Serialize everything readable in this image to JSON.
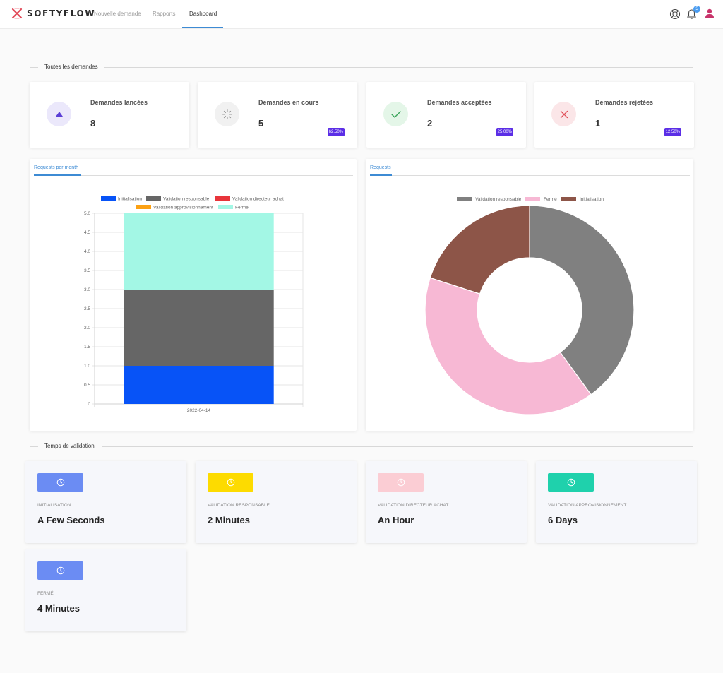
{
  "brand": {
    "name": "SOFTYFLOW"
  },
  "nav": {
    "items": [
      {
        "label": "Nouvelle demande"
      },
      {
        "label": "Rapports"
      },
      {
        "label": "Dashboard"
      }
    ],
    "active_item": "Dashboard",
    "notification_count": "5",
    "icons": [
      "support-icon",
      "bell-icon",
      "user-icon"
    ]
  },
  "sections": {
    "all_requests": "Toutes les demandes",
    "validation_time": "Temps de validation"
  },
  "stats": [
    {
      "title": "Demandes lancées",
      "value": "8",
      "percent": "",
      "icon": "triangle-up-icon",
      "color": "#5b3fd6",
      "bg": "#ebe8fb"
    },
    {
      "title": "Demandes en cours",
      "value": "5",
      "percent": "62.50%",
      "icon": "spinner-icon",
      "color": "#9a9a9a",
      "bg": "#f1f1f1"
    },
    {
      "title": "Demandes acceptées",
      "value": "2",
      "percent": "25.00%",
      "icon": "check-icon",
      "color": "#3aa55a",
      "bg": "#e4f6e8"
    },
    {
      "title": "Demandes rejetées",
      "value": "1",
      "percent": "12.50%",
      "icon": "close-icon",
      "color": "#e0505a",
      "bg": "#fbe6e8"
    }
  ],
  "chart_data": [
    {
      "type": "bar",
      "stacked": true,
      "tab_label": "Requests per month",
      "categories": [
        "2022-04-14"
      ],
      "series": [
        {
          "name": "Initialisation",
          "values": [
            1
          ],
          "color": "#0753f7"
        },
        {
          "name": "Validation responsable",
          "values": [
            2
          ],
          "color": "#666666"
        },
        {
          "name": "Validation directeur achat",
          "values": [
            0
          ],
          "color": "#e8353b"
        },
        {
          "name": "Validation approvisionnement",
          "values": [
            0
          ],
          "color": "#fca113"
        },
        {
          "name": "Fermé",
          "values": [
            2
          ],
          "color": "#a3f7e5"
        }
      ],
      "ylim": [
        0,
        5
      ],
      "yticks": [
        "0",
        "0.5",
        "1.0",
        "1.5",
        "2.0",
        "2.5",
        "3.0",
        "3.5",
        "4.0",
        "4.5",
        "5.0"
      ],
      "grid": true,
      "legend_position": "top"
    },
    {
      "type": "pie",
      "donut": true,
      "tab_label": "Requests",
      "series": [
        {
          "name": "Validation responsable",
          "value": 2,
          "color": "#808080"
        },
        {
          "name": "Fermé",
          "value": 2,
          "color": "#f7b8d4"
        },
        {
          "name": "Initialisation",
          "value": 1,
          "color": "#8d5548"
        }
      ],
      "legend_position": "top"
    }
  ],
  "validation_times": [
    {
      "label": "Initialisation",
      "value": "A Few Seconds",
      "color": "#6b8cf3"
    },
    {
      "label": "Validation responsable",
      "value": "2 Minutes",
      "color": "#fddb00"
    },
    {
      "label": "Validation directeur achat",
      "value": "An Hour",
      "color": "#fbcdd4"
    },
    {
      "label": "Validation approvisionnement",
      "value": "6 Days",
      "color": "#1fd1ac"
    },
    {
      "label": "Fermé",
      "value": "4 Minutes",
      "color": "#6b8cf3"
    }
  ]
}
